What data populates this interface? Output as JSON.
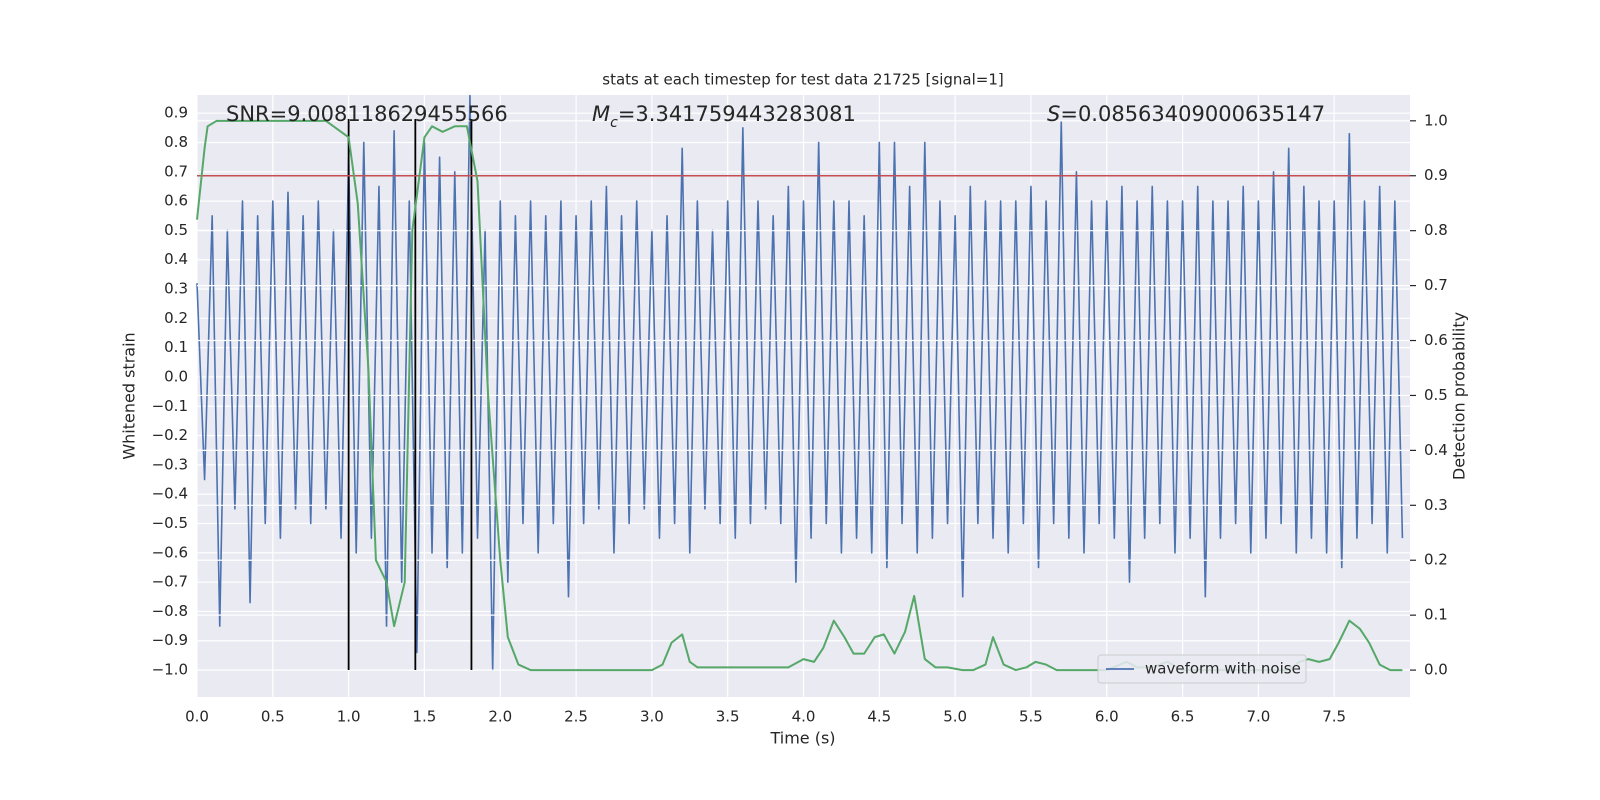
{
  "chart_data": {
    "type": "line",
    "title": "stats at each timestep for test data 21725 [signal=1]",
    "x_label": "Time (s)",
    "y_label": "Whitened strain",
    "y2_label": "Detection probability",
    "annotations": [
      {
        "symbol": "SNR",
        "italic": false,
        "text": "=9.008118629455566"
      },
      {
        "symbol": "M",
        "subscript": "c",
        "italic": true,
        "text": "=3.341759443283081"
      },
      {
        "symbol": "S",
        "italic": true,
        "text": "=0.08563409000635147"
      }
    ],
    "xlim": [
      0,
      8.0
    ],
    "ylim": [
      -1.092,
      0.962
    ],
    "y2lim": [
      -0.049,
      1.047
    ],
    "grid": true,
    "legend": "lower right",
    "xticks": [
      {
        "value": 0,
        "label": "0.0"
      },
      {
        "value": 0.5,
        "label": "0.5"
      },
      {
        "value": 1,
        "label": "1.0"
      },
      {
        "value": 1.5,
        "label": "1.5"
      },
      {
        "value": 2,
        "label": "2.0"
      },
      {
        "value": 2.5,
        "label": "2.5"
      },
      {
        "value": 3,
        "label": "3.0"
      },
      {
        "value": 3.5,
        "label": "3.5"
      },
      {
        "value": 4,
        "label": "4.0"
      },
      {
        "value": 4.5,
        "label": "4.5"
      },
      {
        "value": 5,
        "label": "5.0"
      },
      {
        "value": 5.5,
        "label": "5.5"
      },
      {
        "value": 6,
        "label": "6.0"
      },
      {
        "value": 6.5,
        "label": "6.5"
      },
      {
        "value": 7,
        "label": "7.0"
      },
      {
        "value": 7.5,
        "label": "7.5"
      }
    ],
    "yticks": [
      {
        "value": -1.0,
        "label": "−1.0"
      },
      {
        "value": -0.9,
        "label": "−0.9"
      },
      {
        "value": -0.8,
        "label": "−0.8"
      },
      {
        "value": -0.7,
        "label": "−0.7"
      },
      {
        "value": -0.6,
        "label": "−0.6"
      },
      {
        "value": -0.5,
        "label": "−0.5"
      },
      {
        "value": -0.4,
        "label": "−0.4"
      },
      {
        "value": -0.3,
        "label": "−0.3"
      },
      {
        "value": -0.2,
        "label": "−0.2"
      },
      {
        "value": -0.1,
        "label": "−0.1"
      },
      {
        "value": 0,
        "label": "0.0"
      },
      {
        "value": 0.1,
        "label": "0.1"
      },
      {
        "value": 0.2,
        "label": "0.2"
      },
      {
        "value": 0.3,
        "label": "0.3"
      },
      {
        "value": 0.4,
        "label": "0.4"
      },
      {
        "value": 0.5,
        "label": "0.5"
      },
      {
        "value": 0.6,
        "label": "0.6"
      },
      {
        "value": 0.7,
        "label": "0.7"
      },
      {
        "value": 0.8,
        "label": "0.8"
      },
      {
        "value": 0.9,
        "label": "0.9"
      }
    ],
    "y2ticks": [
      {
        "value": 0,
        "label": "0.0"
      },
      {
        "value": 0.1,
        "label": "0.1"
      },
      {
        "value": 0.2,
        "label": "0.2"
      },
      {
        "value": 0.3,
        "label": "0.3"
      },
      {
        "value": 0.4,
        "label": "0.4"
      },
      {
        "value": 0.5,
        "label": "0.5"
      },
      {
        "value": 0.6,
        "label": "0.6"
      },
      {
        "value": 0.7,
        "label": "0.7"
      },
      {
        "value": 0.8,
        "label": "0.8"
      },
      {
        "value": 0.9,
        "label": "0.9"
      },
      {
        "value": 1,
        "label": "1.0"
      }
    ],
    "threshold": {
      "value": 0.9,
      "axis": "y2",
      "color": "#c44e52"
    },
    "vlines": {
      "x": [
        1.0,
        1.44,
        1.81
      ],
      "ymin": -1.0,
      "ymax": 0.88,
      "color": "#000000"
    },
    "series": [
      {
        "name": "waveform with noise",
        "color": "#4c72b0",
        "x": [
          0,
          0.05,
          0.1,
          0.15,
          0.2,
          0.25,
          0.3,
          0.35,
          0.4,
          0.45,
          0.5,
          0.55,
          0.6,
          0.65,
          0.7,
          0.75,
          0.8,
          0.85,
          0.9,
          0.95,
          1,
          1.05,
          1.1,
          1.15,
          1.2,
          1.25,
          1.3,
          1.35,
          1.4,
          1.45,
          1.5,
          1.55,
          1.6,
          1.65,
          1.7,
          1.75,
          1.8,
          1.85,
          1.9,
          1.95,
          2,
          2.05,
          2.1,
          2.15,
          2.2,
          2.25,
          2.3,
          2.35,
          2.4,
          2.45,
          2.5,
          2.55,
          2.6,
          2.65,
          2.7,
          2.75,
          2.8,
          2.85,
          2.9,
          2.95,
          3,
          3.05,
          3.1,
          3.15,
          3.2,
          3.25,
          3.3,
          3.35,
          3.4,
          3.45,
          3.5,
          3.55,
          3.6,
          3.65,
          3.7,
          3.75,
          3.8,
          3.85,
          3.9,
          3.95,
          4,
          4.05,
          4.1,
          4.15,
          4.2,
          4.25,
          4.3,
          4.35,
          4.4,
          4.45,
          4.5,
          4.55,
          4.6,
          4.65,
          4.7,
          4.75,
          4.8,
          4.85,
          4.9,
          4.95,
          5,
          5.05,
          5.1,
          5.15,
          5.2,
          5.25,
          5.3,
          5.35,
          5.4,
          5.45,
          5.5,
          5.55,
          5.6,
          5.65,
          5.7,
          5.75,
          5.8,
          5.85,
          5.9,
          5.95,
          6,
          6.05,
          6.1,
          6.15,
          6.2,
          6.25,
          6.3,
          6.35,
          6.4,
          6.45,
          6.5,
          6.55,
          6.6,
          6.65,
          6.7,
          6.75,
          6.8,
          6.85,
          6.9,
          6.95,
          7,
          7.05,
          7.1,
          7.15,
          7.2,
          7.25,
          7.3,
          7.35,
          7.4,
          7.45,
          7.5,
          7.55,
          7.6,
          7.65,
          7.7,
          7.75,
          7.8,
          7.85,
          7.9,
          7.95
        ],
        "values": [
          0.32,
          -0.35,
          0.55,
          -0.85,
          0.5,
          -0.45,
          0.6,
          -0.77,
          0.55,
          -0.5,
          0.6,
          -0.55,
          0.63,
          -0.45,
          0.55,
          -0.5,
          0.6,
          -0.45,
          0.5,
          -0.55,
          0.75,
          -0.6,
          0.8,
          -0.55,
          0.65,
          -0.85,
          0.84,
          -0.7,
          0.6,
          -0.94,
          0.8,
          -0.6,
          0.75,
          -0.65,
          0.7,
          -0.6,
          0.96,
          -0.55,
          0.5,
          -1.0,
          0.6,
          -0.7,
          0.55,
          -0.5,
          0.6,
          -0.6,
          0.55,
          -0.5,
          0.6,
          -0.75,
          0.55,
          -0.5,
          0.6,
          -0.45,
          0.65,
          -0.6,
          0.55,
          -0.5,
          0.6,
          -0.45,
          0.5,
          -0.55,
          0.55,
          -0.5,
          0.78,
          -0.6,
          0.6,
          -0.45,
          0.5,
          -0.5,
          0.6,
          -0.55,
          0.85,
          -0.5,
          0.6,
          -0.45,
          0.55,
          -0.5,
          0.65,
          -0.7,
          0.6,
          -0.55,
          0.8,
          -0.5,
          0.6,
          -0.6,
          0.6,
          -0.55,
          0.55,
          -0.6,
          0.8,
          -0.65,
          0.8,
          -0.5,
          0.65,
          -0.6,
          0.8,
          -0.55,
          0.6,
          -0.5,
          0.55,
          -0.75,
          0.65,
          -0.5,
          0.6,
          -0.55,
          0.6,
          -0.6,
          0.6,
          -0.5,
          0.65,
          -0.65,
          0.6,
          -0.5,
          0.87,
          -0.55,
          0.7,
          -0.6,
          0.6,
          -0.5,
          0.6,
          -0.55,
          0.65,
          -0.7,
          0.6,
          -0.55,
          0.65,
          -0.5,
          0.6,
          -0.6,
          0.6,
          -0.55,
          0.65,
          -0.75,
          0.6,
          -0.55,
          0.6,
          -0.5,
          0.65,
          -0.6,
          0.6,
          -0.55,
          0.7,
          -0.5,
          0.78,
          -0.6,
          0.65,
          -0.55,
          0.6,
          -0.6,
          0.6,
          -0.65,
          0.83,
          -0.55,
          0.6,
          -0.5,
          0.65,
          -0.6,
          0.6,
          -0.55
        ]
      },
      {
        "color": "#55a868",
        "axis": "y2",
        "x": [
          0,
          0.05,
          0.07,
          0.13,
          0.3,
          0.5,
          0.7,
          0.85,
          0.9,
          1.0,
          1.06,
          1.13,
          1.18,
          1.25,
          1.3,
          1.37,
          1.42,
          1.5,
          1.55,
          1.62,
          1.7,
          1.78,
          1.85,
          1.92,
          2.0,
          2.05,
          2.12,
          2.2,
          2.5,
          3.0,
          3.07,
          3.13,
          3.2,
          3.25,
          3.3,
          3.4,
          3.9,
          4.0,
          4.07,
          4.13,
          4.2,
          4.27,
          4.33,
          4.4,
          4.47,
          4.53,
          4.6,
          4.67,
          4.73,
          4.8,
          4.87,
          4.95,
          5.05,
          5.12,
          5.2,
          5.25,
          5.32,
          5.4,
          5.47,
          5.53,
          5.6,
          5.67,
          6.0,
          6.13,
          6.2,
          6.3,
          6.4,
          6.5,
          7.2,
          7.27,
          7.33,
          7.4,
          7.47,
          7.53,
          7.6,
          7.67,
          7.73,
          7.8,
          7.87,
          7.95
        ],
        "values": [
          0.82,
          0.95,
          0.99,
          1.0,
          1.0,
          1.0,
          1.0,
          1.0,
          0.99,
          0.97,
          0.85,
          0.55,
          0.2,
          0.16,
          0.08,
          0.16,
          0.8,
          0.97,
          0.99,
          0.98,
          0.99,
          0.99,
          0.89,
          0.5,
          0.2,
          0.06,
          0.01,
          0.0,
          0.0,
          0.0,
          0.01,
          0.05,
          0.065,
          0.015,
          0.005,
          0.005,
          0.005,
          0.02,
          0.015,
          0.04,
          0.09,
          0.06,
          0.03,
          0.03,
          0.06,
          0.065,
          0.03,
          0.07,
          0.135,
          0.02,
          0.005,
          0.005,
          0.0,
          0.0,
          0.01,
          0.06,
          0.01,
          0.0,
          0.005,
          0.015,
          0.01,
          0.0,
          0.0,
          0.015,
          0.005,
          0.005,
          0.015,
          0.0,
          0.0,
          0.015,
          0.02,
          0.015,
          0.02,
          0.05,
          0.09,
          0.075,
          0.05,
          0.01,
          0.0,
          0.0
        ]
      }
    ]
  }
}
